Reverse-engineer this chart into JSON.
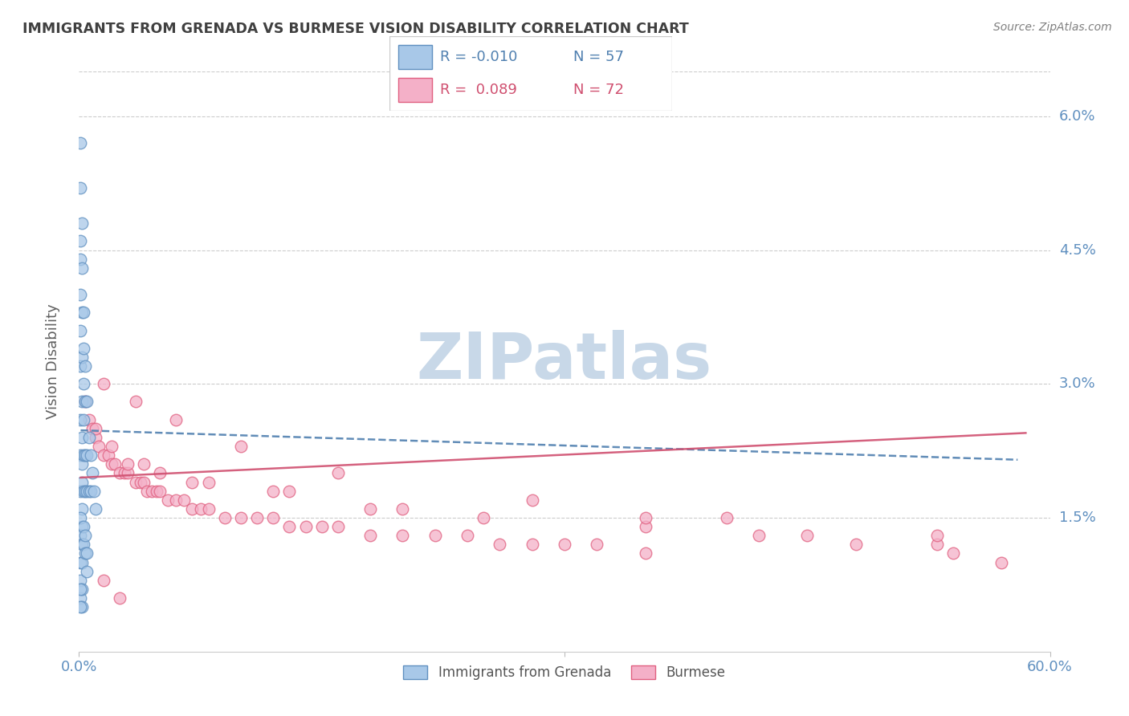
{
  "title": "IMMIGRANTS FROM GRENADA VS BURMESE VISION DISABILITY CORRELATION CHART",
  "source": "Source: ZipAtlas.com",
  "ylabel": "Vision Disability",
  "ytick_labels": [
    "1.5%",
    "3.0%",
    "4.5%",
    "6.0%"
  ],
  "ytick_values": [
    0.015,
    0.03,
    0.045,
    0.06
  ],
  "xlim": [
    0.0,
    0.6
  ],
  "ylim": [
    0.0,
    0.065
  ],
  "blue_color": "#a8c8e8",
  "pink_color": "#f4b0c8",
  "blue_edge_color": "#6090c0",
  "pink_edge_color": "#e06080",
  "blue_line_color": "#5080b0",
  "pink_line_color": "#d05070",
  "axis_tick_color": "#6090c0",
  "title_color": "#404040",
  "source_color": "#808080",
  "ylabel_color": "#606060",
  "watermark_text": "ZIPatlas",
  "watermark_color": "#c8d8e8",
  "legend_r1_val": "R = -0.010",
  "legend_r1_n": "N = 57",
  "legend_r2_val": "R =  0.089",
  "legend_r2_n": "N = 72",
  "legend_label1": "Immigrants from Grenada",
  "legend_label2": "Burmese",
  "grenada_x": [
    0.001,
    0.001,
    0.001,
    0.001,
    0.001,
    0.001,
    0.001,
    0.001,
    0.001,
    0.001,
    0.002,
    0.002,
    0.002,
    0.002,
    0.002,
    0.002,
    0.002,
    0.002,
    0.002,
    0.002,
    0.003,
    0.003,
    0.003,
    0.003,
    0.003,
    0.003,
    0.004,
    0.004,
    0.004,
    0.004,
    0.005,
    0.005,
    0.005,
    0.006,
    0.006,
    0.007,
    0.007,
    0.008,
    0.009,
    0.01,
    0.001,
    0.001,
    0.002,
    0.002,
    0.001,
    0.001,
    0.001,
    0.002,
    0.002,
    0.003,
    0.003,
    0.004,
    0.004,
    0.005,
    0.005,
    0.001,
    0.001
  ],
  "grenada_y": [
    0.057,
    0.052,
    0.046,
    0.044,
    0.04,
    0.036,
    0.032,
    0.026,
    0.022,
    0.018,
    0.048,
    0.043,
    0.038,
    0.033,
    0.028,
    0.024,
    0.021,
    0.019,
    0.016,
    0.014,
    0.038,
    0.034,
    0.03,
    0.026,
    0.022,
    0.018,
    0.032,
    0.028,
    0.022,
    0.018,
    0.028,
    0.022,
    0.018,
    0.024,
    0.018,
    0.022,
    0.018,
    0.02,
    0.018,
    0.016,
    0.013,
    0.01,
    0.012,
    0.01,
    0.015,
    0.008,
    0.006,
    0.007,
    0.005,
    0.014,
    0.012,
    0.013,
    0.011,
    0.011,
    0.009,
    0.007,
    0.005
  ],
  "burmese_x": [
    0.004,
    0.006,
    0.008,
    0.01,
    0.012,
    0.015,
    0.018,
    0.02,
    0.022,
    0.025,
    0.028,
    0.03,
    0.035,
    0.038,
    0.04,
    0.042,
    0.045,
    0.048,
    0.05,
    0.055,
    0.06,
    0.065,
    0.07,
    0.075,
    0.08,
    0.09,
    0.1,
    0.11,
    0.12,
    0.13,
    0.14,
    0.15,
    0.16,
    0.18,
    0.2,
    0.22,
    0.24,
    0.26,
    0.28,
    0.3,
    0.32,
    0.35,
    0.03,
    0.05,
    0.08,
    0.12,
    0.18,
    0.25,
    0.35,
    0.42,
    0.48,
    0.54,
    0.57,
    0.01,
    0.02,
    0.04,
    0.07,
    0.13,
    0.2,
    0.35,
    0.45,
    0.53,
    0.015,
    0.035,
    0.06,
    0.1,
    0.16,
    0.28,
    0.4,
    0.53,
    0.015,
    0.025
  ],
  "burmese_y": [
    0.028,
    0.026,
    0.025,
    0.024,
    0.023,
    0.022,
    0.022,
    0.021,
    0.021,
    0.02,
    0.02,
    0.02,
    0.019,
    0.019,
    0.019,
    0.018,
    0.018,
    0.018,
    0.018,
    0.017,
    0.017,
    0.017,
    0.016,
    0.016,
    0.016,
    0.015,
    0.015,
    0.015,
    0.015,
    0.014,
    0.014,
    0.014,
    0.014,
    0.013,
    0.013,
    0.013,
    0.013,
    0.012,
    0.012,
    0.012,
    0.012,
    0.011,
    0.021,
    0.02,
    0.019,
    0.018,
    0.016,
    0.015,
    0.014,
    0.013,
    0.012,
    0.011,
    0.01,
    0.025,
    0.023,
    0.021,
    0.019,
    0.018,
    0.016,
    0.015,
    0.013,
    0.012,
    0.03,
    0.028,
    0.026,
    0.023,
    0.02,
    0.017,
    0.015,
    0.013,
    0.008,
    0.006
  ],
  "blue_trend_x": [
    0.001,
    0.58
  ],
  "blue_trend_y": [
    0.0248,
    0.0215
  ],
  "pink_trend_x": [
    0.001,
    0.585
  ],
  "pink_trend_y": [
    0.0195,
    0.0245
  ]
}
